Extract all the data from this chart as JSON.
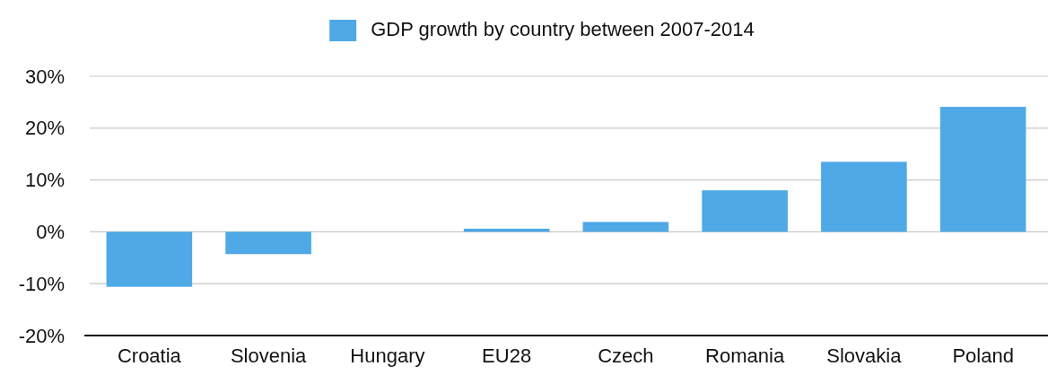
{
  "chart_data": {
    "type": "bar",
    "categories": [
      "Croatia",
      "Slovenia",
      "Hungary",
      "EU28",
      "Czech",
      "Romania",
      "Slovakia",
      "Poland"
    ],
    "series": [
      {
        "name": "GDP growth by country between 2007-2014",
        "color": "#4ea9e6",
        "values": [
          -10.6,
          -4.3,
          0,
          0.6,
          1.9,
          8.0,
          13.5,
          24.1
        ]
      }
    ],
    "ylim": [
      -20,
      30
    ],
    "yticks": [
      {
        "value": -20,
        "label": "-20%"
      },
      {
        "value": -10,
        "label": "-10%"
      },
      {
        "value": 0,
        "label": "0%"
      },
      {
        "value": 10,
        "label": "10%"
      },
      {
        "value": 20,
        "label": "20%"
      },
      {
        "value": 30,
        "label": "30%"
      }
    ],
    "grid": "y",
    "legend": "top"
  }
}
